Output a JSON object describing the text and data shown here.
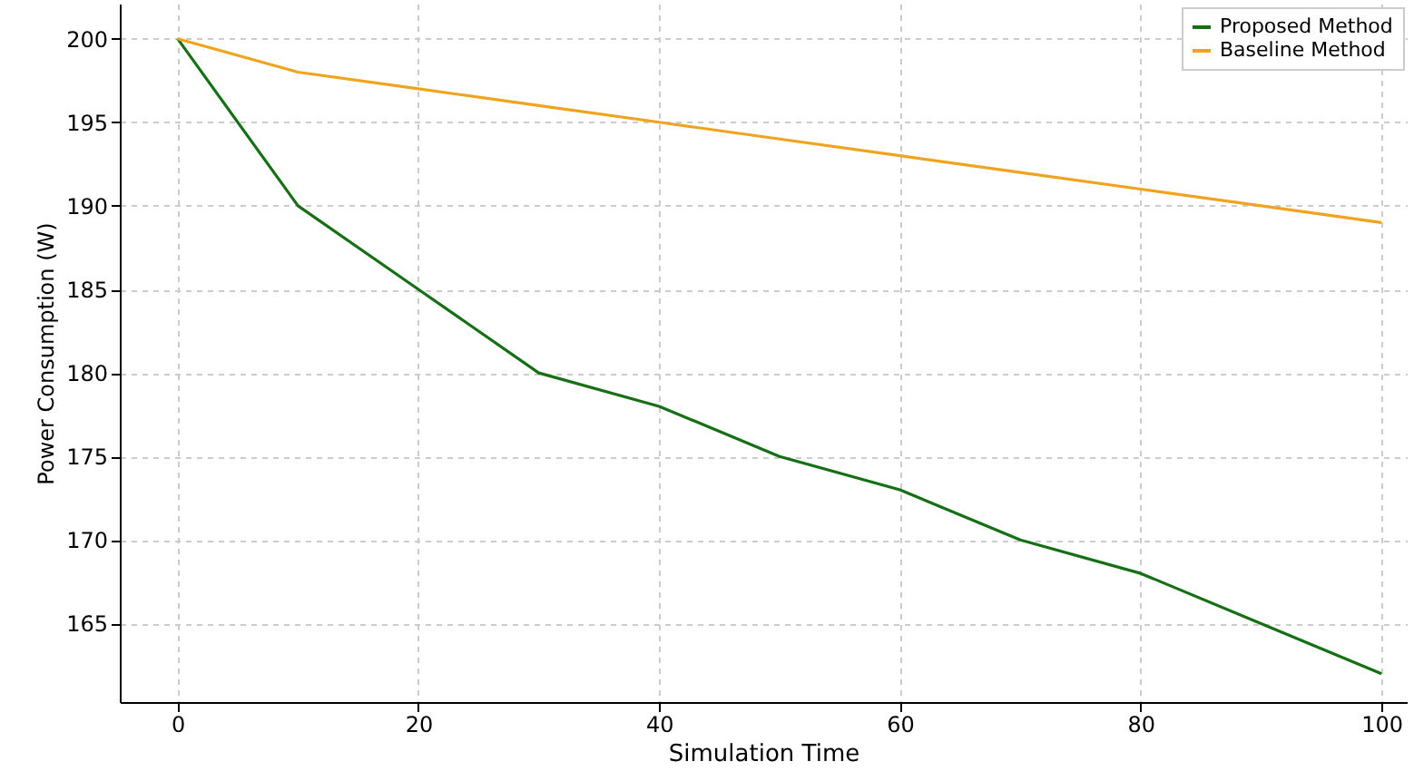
{
  "chart_data": {
    "type": "line",
    "xlabel": "Simulation Time",
    "ylabel": "Power Consumption (W)",
    "x": [
      0,
      10,
      20,
      30,
      40,
      50,
      60,
      70,
      80,
      90,
      100
    ],
    "series": [
      {
        "name": "Proposed Method",
        "color": "#157015",
        "values": [
          200,
          190,
          185,
          180,
          178,
          175,
          173,
          170,
          168,
          165,
          162
        ]
      },
      {
        "name": "Baseline Method",
        "color": "#f0a31e",
        "values": [
          200,
          198,
          197,
          196,
          195,
          194,
          193,
          192,
          191,
          190,
          189
        ]
      }
    ],
    "xlim": [
      -4.8,
      102.1
    ],
    "ylim": [
      160.3,
      202.1
    ],
    "xticks": [
      0,
      20,
      40,
      60,
      80,
      100
    ],
    "yticks": [
      165,
      170,
      175,
      180,
      185,
      190,
      195,
      200
    ],
    "grid": true,
    "legend": "top right",
    "marker": "none",
    "line_style": "solid"
  }
}
